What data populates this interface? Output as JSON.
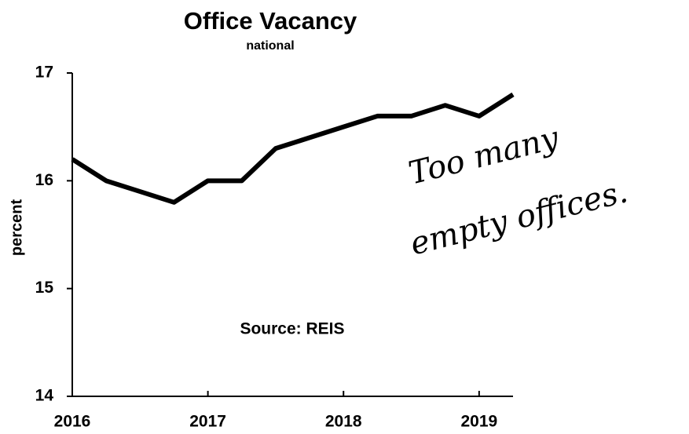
{
  "chart_data": {
    "type": "line",
    "title": "Office Vacancy",
    "subtitle": "national",
    "ylabel": "percent",
    "annotations": [
      "Source: REIS",
      "Too many",
      "empty offices."
    ],
    "x": [
      2016,
      2016.25,
      2016.5,
      2016.75,
      2017,
      2017.25,
      2017.5,
      2017.75,
      2018,
      2018.25,
      2018.5,
      2018.75,
      2019,
      2019.25
    ],
    "series": [
      {
        "name": "Office Vacancy",
        "color": "#000000",
        "values": [
          16.2,
          16.0,
          15.9,
          15.8,
          16.0,
          16.0,
          16.3,
          16.4,
          16.5,
          16.6,
          16.6,
          16.7,
          16.6,
          16.8
        ]
      }
    ],
    "xlim": [
      2016,
      2019.25
    ],
    "xticks": [
      2016,
      2017,
      2018,
      2019
    ],
    "ylim": [
      14,
      17
    ],
    "yticks": [
      14,
      15,
      16,
      17
    ]
  }
}
